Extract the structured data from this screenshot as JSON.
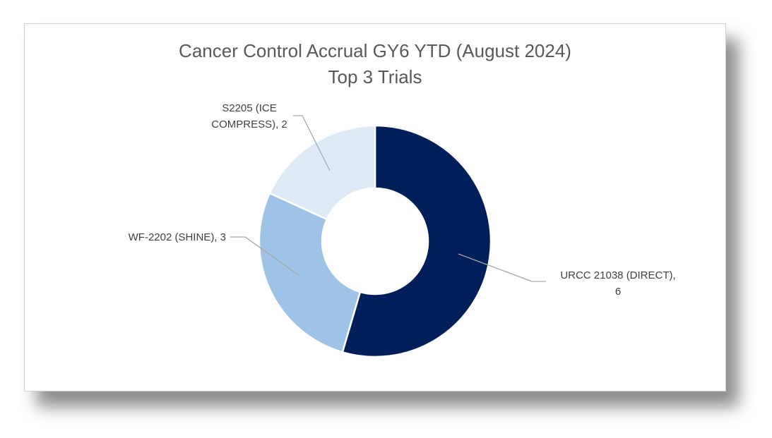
{
  "chart_data": {
    "type": "pie",
    "variant": "doughnut",
    "title_lines": [
      "Cancer Control Accrual GY6 YTD (August 2024)",
      "Top 3 Trials"
    ],
    "slices": [
      {
        "label": "URCC 21038 (DIRECT)",
        "value": 6,
        "color": "#001e5a",
        "label_lines": [
          "URCC 21038 (DIRECT),",
          "6"
        ]
      },
      {
        "label": "WF-2202 (SHINE)",
        "value": 3,
        "color": "#9fc3e7",
        "label_lines": [
          "WF-2202 (SHINE), 3"
        ]
      },
      {
        "label": "S2205 (ICE COMPRESS)",
        "value": 2,
        "color": "#deebf7",
        "label_lines": [
          "S2205 (ICE",
          "COMPRESS), 2"
        ]
      }
    ],
    "legend": "none",
    "leader_line_color": "#a6a6a6"
  }
}
